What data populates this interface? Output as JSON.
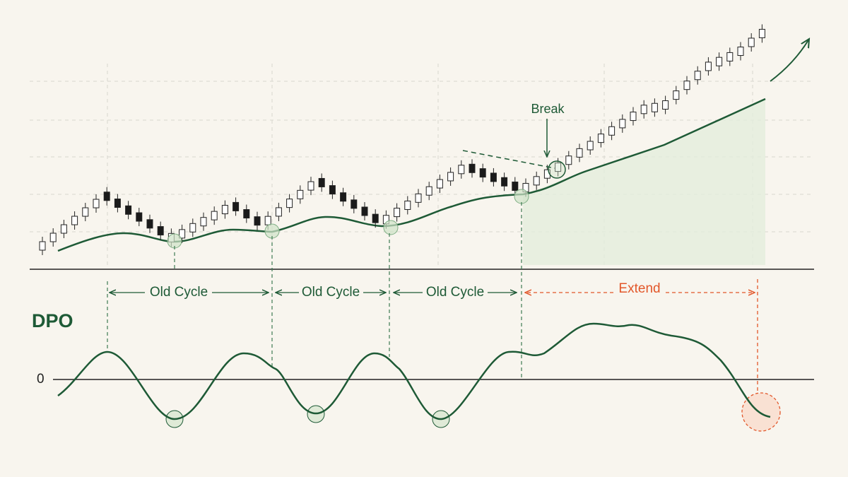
{
  "break_label": "Break",
  "cycle_labels": [
    "Old Cycle",
    "Old Cycle",
    "Old Cycle"
  ],
  "extend_label": "Extend",
  "indicator_label": "DPO",
  "zero_label": "0"
}
